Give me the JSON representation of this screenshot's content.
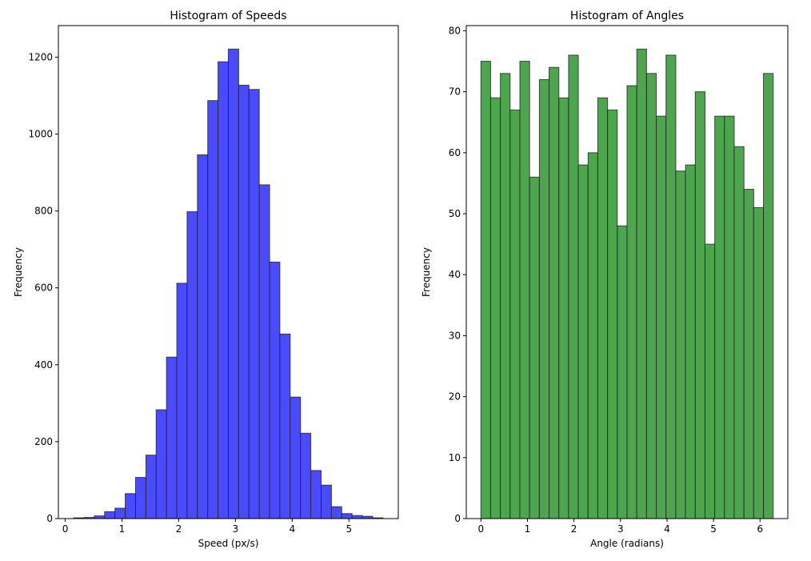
{
  "chart_data": [
    {
      "type": "histogram",
      "title": "Histogram of Speeds",
      "x_label": "Speed (px/s)",
      "y_label": "Frequency",
      "color": "#4a4aff",
      "edgecolor": "#222222",
      "bins": [
        0.15,
        0.332,
        0.513,
        0.695,
        0.877,
        1.058,
        1.24,
        1.422,
        1.603,
        1.785,
        1.967,
        2.148,
        2.33,
        2.512,
        2.693,
        2.875,
        3.057,
        3.238,
        3.42,
        3.602,
        3.783,
        3.965,
        4.147,
        4.328,
        4.51,
        4.692,
        4.873,
        5.055,
        5.237,
        5.418,
        5.6
      ],
      "counts": [
        2,
        3,
        7,
        18,
        27,
        65,
        107,
        165,
        283,
        420,
        612,
        798,
        946,
        1087,
        1188,
        1221,
        1127,
        1116,
        868,
        667,
        480,
        316,
        222,
        125,
        87,
        31,
        13,
        8,
        6,
        2
      ],
      "xlim": [
        -0.12,
        5.87
      ],
      "xticks": [
        0,
        1,
        2,
        3,
        4,
        5
      ],
      "ylim": [
        0,
        1282
      ],
      "yticks": [
        0,
        200,
        400,
        600,
        800,
        1000,
        1200
      ]
    },
    {
      "type": "histogram",
      "title": "Histogram of Angles",
      "x_label": "Angle (radians)",
      "y_label": "Frequency",
      "color": "#4da64d",
      "edgecolor": "#222222",
      "bins": [
        0,
        0.209,
        0.419,
        0.628,
        0.838,
        1.047,
        1.257,
        1.466,
        1.676,
        1.885,
        2.094,
        2.304,
        2.513,
        2.723,
        2.932,
        3.142,
        3.351,
        3.56,
        3.77,
        3.979,
        4.189,
        4.398,
        4.608,
        4.817,
        5.027,
        5.236,
        5.445,
        5.655,
        5.864,
        6.074,
        6.283
      ],
      "counts": [
        75,
        69,
        73,
        67,
        75,
        56,
        72,
        74,
        69,
        76,
        58,
        60,
        69,
        67,
        48,
        71,
        77,
        73,
        66,
        76,
        57,
        58,
        70,
        45,
        66,
        66,
        61,
        54,
        51,
        73
      ],
      "xlim": [
        -0.314,
        6.597
      ],
      "xticks": [
        0,
        1,
        2,
        3,
        4,
        5,
        6
      ],
      "ylim": [
        0,
        80.85
      ],
      "yticks": [
        0,
        10,
        20,
        30,
        40,
        50,
        60,
        70,
        80
      ]
    }
  ]
}
